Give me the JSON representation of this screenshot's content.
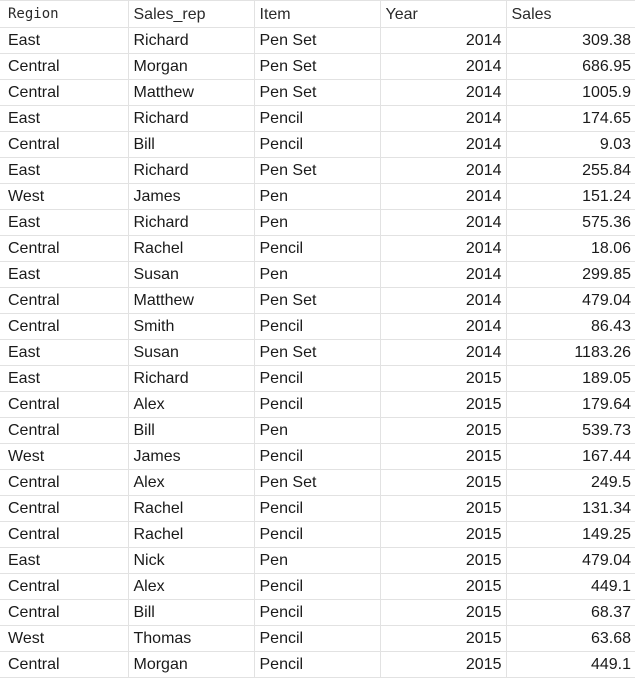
{
  "headers": [
    "Region",
    "Sales_rep",
    "Item",
    "Year",
    "Sales"
  ],
  "rows": [
    [
      "East",
      "Richard",
      "Pen Set",
      "2014",
      "309.38"
    ],
    [
      "Central",
      "Morgan",
      "Pen Set",
      "2014",
      "686.95"
    ],
    [
      "Central",
      "Matthew",
      "Pen Set",
      "2014",
      "1005.9"
    ],
    [
      "East",
      "Richard",
      "Pencil",
      "2014",
      "174.65"
    ],
    [
      "Central",
      "Bill",
      "Pencil",
      "2014",
      "9.03"
    ],
    [
      "East",
      "Richard",
      "Pen Set",
      "2014",
      "255.84"
    ],
    [
      "West",
      "James",
      "Pen",
      "2014",
      "151.24"
    ],
    [
      "East",
      "Richard",
      "Pen",
      "2014",
      "575.36"
    ],
    [
      "Central",
      "Rachel",
      "Pencil",
      "2014",
      "18.06"
    ],
    [
      "East",
      "Susan",
      "Pen",
      "2014",
      "299.85"
    ],
    [
      "Central",
      "Matthew",
      "Pen Set",
      "2014",
      "479.04"
    ],
    [
      "Central",
      "Smith",
      "Pencil",
      "2014",
      "86.43"
    ],
    [
      "East",
      "Susan",
      "Pen Set",
      "2014",
      "1183.26"
    ],
    [
      "East",
      "Richard",
      "Pencil",
      "2015",
      "189.05"
    ],
    [
      "Central",
      "Alex",
      "Pencil",
      "2015",
      "179.64"
    ],
    [
      "Central",
      "Bill",
      "Pen",
      "2015",
      "539.73"
    ],
    [
      "West",
      "James",
      "Pencil",
      "2015",
      "167.44"
    ],
    [
      "Central",
      "Alex",
      "Pen Set",
      "2015",
      "249.5"
    ],
    [
      "Central",
      "Rachel",
      "Pencil",
      "2015",
      "131.34"
    ],
    [
      "Central",
      "Rachel",
      "Pencil",
      "2015",
      "149.25"
    ],
    [
      "East",
      "Nick",
      "Pen",
      "2015",
      "479.04"
    ],
    [
      "Central",
      "Alex",
      "Pencil",
      "2015",
      "449.1"
    ],
    [
      "Central",
      "Bill",
      "Pencil",
      "2015",
      "68.37"
    ],
    [
      "West",
      "Thomas",
      "Pencil",
      "2015",
      "63.68"
    ],
    [
      "Central",
      "Morgan",
      "Pencil",
      "2015",
      "449.1"
    ]
  ]
}
